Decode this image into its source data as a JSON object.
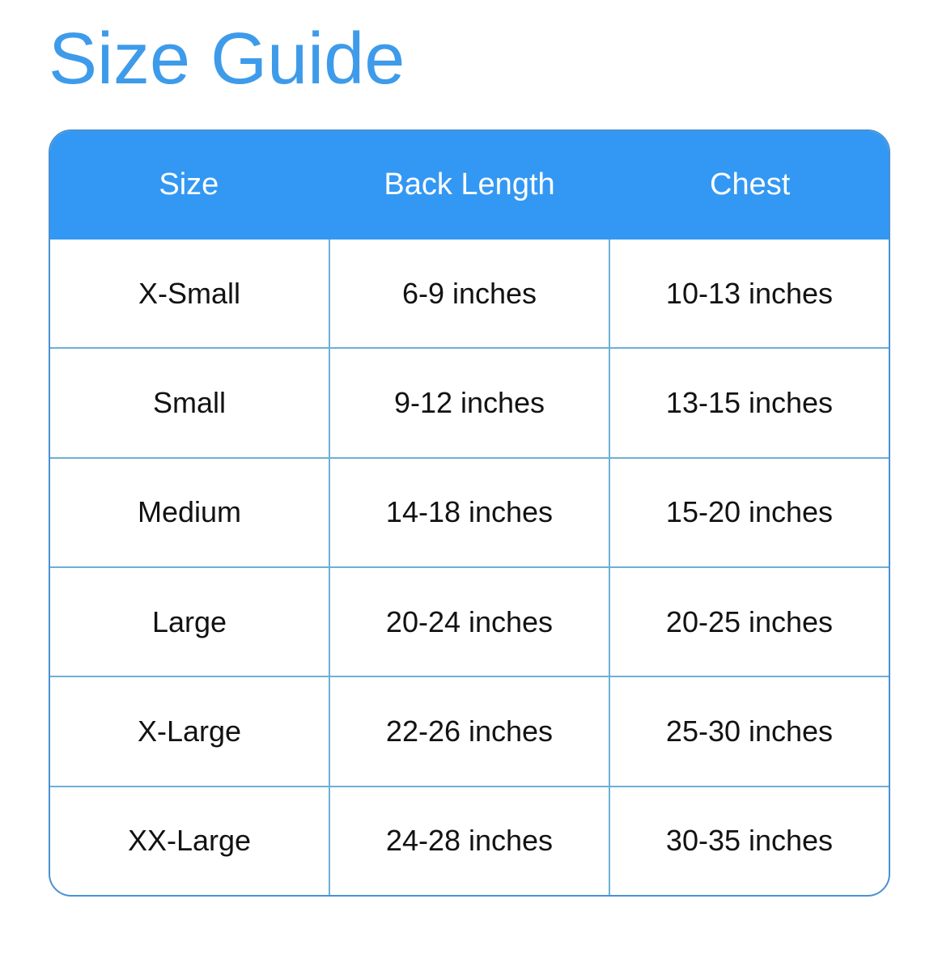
{
  "page_title": "Size Guide",
  "colors": {
    "title_blue": "#3e9bea",
    "header_background_blue": "#3398f3",
    "header_text": "#ffffff",
    "grid_line_blue": "#6cb0d8",
    "outer_border_blue": "#4a90d2",
    "cell_text": "#121212",
    "page_background": "#ffffff"
  },
  "chart_data": {
    "type": "table",
    "title": "Size Guide",
    "columns": [
      "Size",
      "Back Length",
      "Chest"
    ],
    "rows": [
      [
        "X-Small",
        "6-9 inches",
        "10-13 inches"
      ],
      [
        "Small",
        "9-12 inches",
        "13-15 inches"
      ],
      [
        "Medium",
        "14-18 inches",
        "15-20 inches"
      ],
      [
        "Large",
        "20-24 inches",
        "20-25 inches"
      ],
      [
        "X-Large",
        "22-26 inches",
        "25-30 inches"
      ],
      [
        "XX-Large",
        "24-28 inches",
        "30-35 inches"
      ]
    ],
    "layout_hints": {
      "header_style": "solid blue bar with white text, rounded top corners",
      "grid": "light blue lines between rows and between body columns only",
      "outer_border": "rounded rectangle, radius ~28px",
      "column_alignment": "center"
    }
  }
}
